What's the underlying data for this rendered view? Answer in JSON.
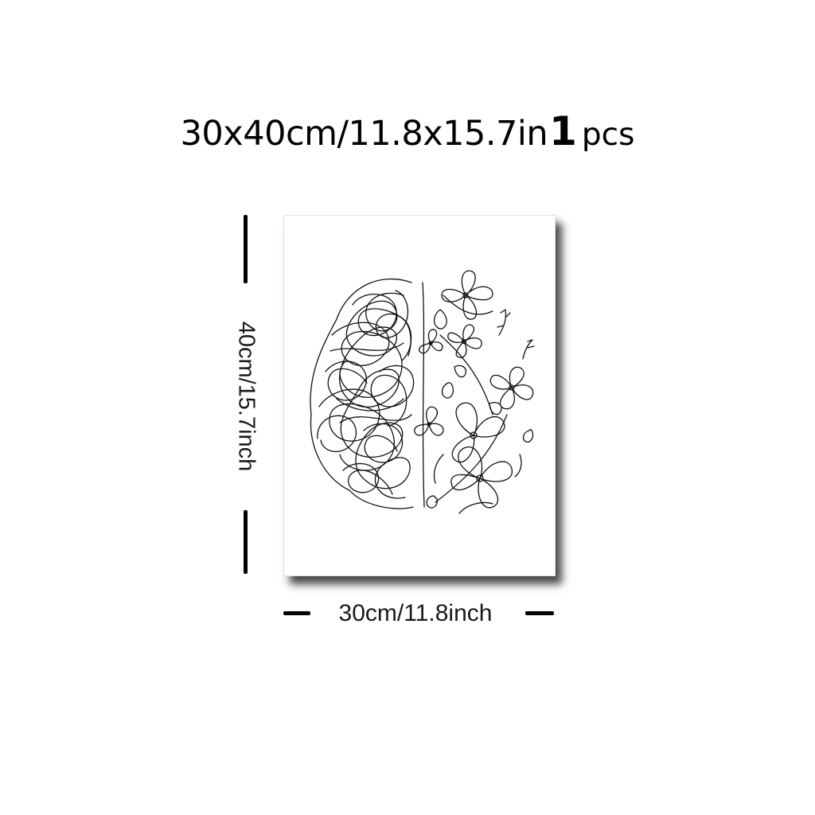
{
  "title": {
    "size_text": "30x40cm/11.8x15.7in",
    "quantity_number": "1",
    "quantity_unit": "pcs"
  },
  "dimensions": {
    "height_label": "40cm/15.7inch",
    "width_label": "30cm/11.8inch"
  },
  "artwork": {
    "subject": "line-art brain: scribbled left hemisphere, floral right hemisphere",
    "line_color": "#111111",
    "background_color": "#ffffff"
  }
}
